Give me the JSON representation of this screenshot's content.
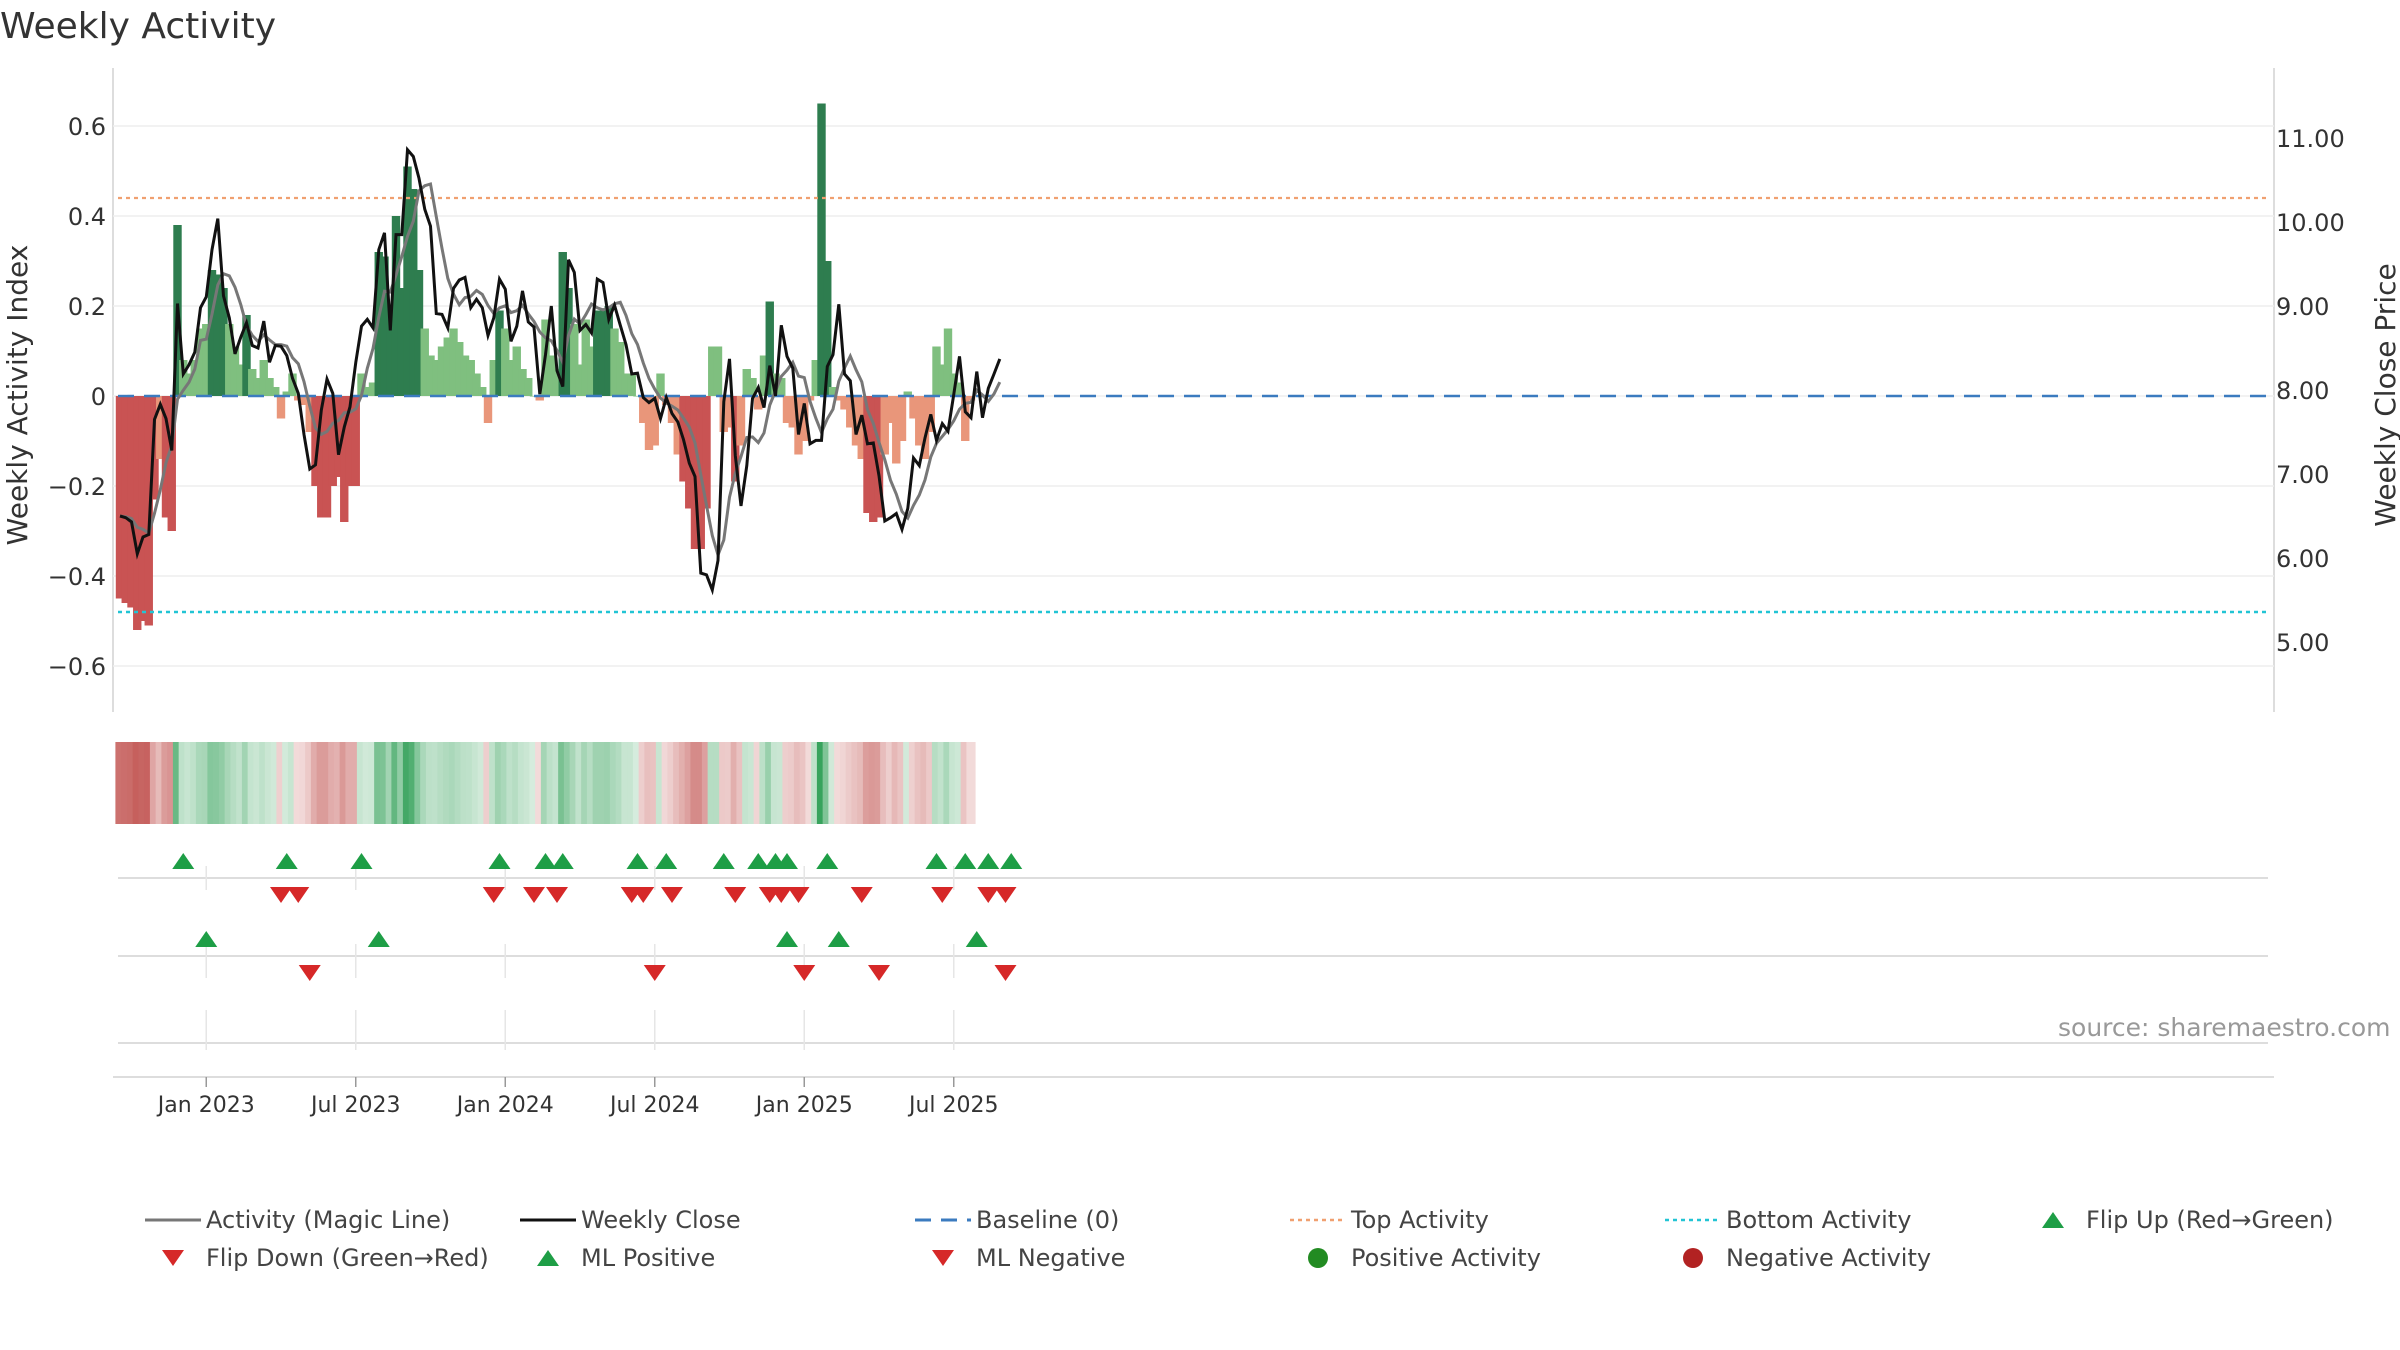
{
  "title": "Weekly Activity",
  "source": "source: sharemaestro.com",
  "colors": {
    "positive_strong": "#2e7d4f",
    "positive_light": "#7fbf7f",
    "negative_strong": "#c95353",
    "negative_light": "#e9967a",
    "magic_line": "#777777",
    "close_line": "#111111",
    "baseline": "#3b7bbf",
    "top": "#f0a070",
    "bottom": "#22c4d4",
    "up_marker": "#1e9e46",
    "down_marker": "#d62828"
  },
  "chart_data": {
    "type": "bar+line",
    "title": "Weekly Activity",
    "ylabel_left": "Weekly Activity Index",
    "ylabel_right": "Weekly Close Price",
    "ylim_left": [
      -0.7,
      0.7
    ],
    "ylim_right": [
      4.3,
      11.8
    ],
    "yticks_left": [
      "0.6",
      "0.4",
      "0.2",
      "0",
      "−0.2",
      "−0.4",
      "−0.6"
    ],
    "yticks_left_values": [
      0.6,
      0.4,
      0.2,
      0,
      -0.2,
      -0.4,
      -0.6
    ],
    "yticks_right": [
      "11.00",
      "10.00",
      "9.00",
      "8.00",
      "7.00",
      "6.00",
      "5.00"
    ],
    "yticks_right_values": [
      11,
      10,
      9,
      8,
      7,
      6,
      5
    ],
    "xtick_labels": [
      "Jan 2023",
      "Jul 2023",
      "Jan 2024",
      "Jul 2024",
      "Jan 2025",
      "Jul 2025"
    ],
    "xtick_weeks": [
      15,
      41,
      67,
      93,
      119,
      145
    ],
    "top_activity": 0.44,
    "bottom_activity": -0.48,
    "baseline": 0,
    "activity": [
      -0.45,
      -0.46,
      -0.47,
      -0.52,
      -0.5,
      -0.51,
      -0.23,
      -0.14,
      -0.27,
      -0.3,
      0.38,
      0.08,
      0.05,
      0.08,
      0.15,
      0.16,
      0.28,
      0.27,
      0.24,
      0.16,
      0.11,
      0.07,
      0.18,
      0.06,
      0.04,
      0.08,
      0.04,
      0.02,
      -0.05,
      0.01,
      0.05,
      -0.01,
      -0.02,
      -0.08,
      -0.2,
      -0.27,
      -0.27,
      -0.2,
      -0.18,
      -0.28,
      -0.2,
      -0.2,
      0.05,
      0.02,
      0.03,
      0.32,
      0.31,
      0.18,
      0.4,
      0.24,
      0.51,
      0.46,
      0.28,
      0.15,
      0.09,
      0.08,
      0.11,
      0.13,
      0.15,
      0.12,
      0.09,
      0.08,
      0.05,
      0.02,
      -0.06,
      0.08,
      0.19,
      0.15,
      0.08,
      0.11,
      0.06,
      0.04,
      0.0,
      -0.01,
      0.17,
      0.09,
      0.06,
      0.32,
      0.24,
      0.16,
      0.07,
      0.17,
      0.11,
      0.19,
      0.19,
      0.2,
      0.15,
      0.12,
      0.05,
      0.05,
      0.0,
      -0.06,
      -0.12,
      -0.11,
      0.05,
      -0.02,
      -0.06,
      -0.13,
      -0.19,
      -0.25,
      -0.34,
      -0.34,
      -0.25,
      0.11,
      0.11,
      -0.08,
      -0.07,
      -0.19,
      -0.11,
      0.06,
      0.04,
      -0.03,
      0.09,
      0.21,
      0.05,
      0.04,
      -0.06,
      -0.07,
      -0.13,
      -0.1,
      -0.01,
      0.08,
      0.65,
      0.3,
      0.02,
      -0.01,
      -0.03,
      -0.07,
      -0.11,
      -0.14,
      -0.26,
      -0.28,
      -0.27,
      -0.13,
      -0.06,
      -0.15,
      -0.1,
      0.01,
      -0.05,
      -0.11,
      -0.14,
      -0.08,
      0.11,
      0.07,
      0.15,
      0.05,
      0.03,
      -0.1,
      -0.01
    ]
  },
  "price": [
    6.5,
    6.48,
    6.43,
    6.05,
    6.25,
    6.28,
    7.65,
    7.83,
    7.66,
    7.28,
    9.03,
    8.19,
    8.3,
    8.45,
    8.98,
    9.11,
    9.67,
    10.04,
    9.12,
    8.86,
    8.43,
    8.63,
    8.8,
    8.53,
    8.5,
    8.82,
    8.33,
    8.53,
    8.52,
    8.41,
    8.14,
    7.96,
    7.47,
    7.06,
    7.11,
    7.76,
    8.13,
    7.96,
    7.23,
    7.56,
    7.8,
    8.33,
    8.76,
    8.84,
    8.74,
    9.67,
    9.87,
    8.71,
    9.85,
    9.85,
    10.86,
    10.78,
    10.52,
    10.15,
    9.95,
    8.91,
    8.9,
    8.74,
    9.21,
    9.31,
    9.34,
    8.98,
    9.08,
    8.98,
    8.65,
    8.86,
    9.32,
    9.2,
    8.58,
    8.76,
    9.18,
    8.81,
    8.75,
    7.95,
    8.42,
    9.0,
    8.23,
    8.04,
    9.55,
    9.4,
    8.71,
    8.78,
    8.68,
    9.32,
    9.28,
    8.84,
    9.01,
    8.77,
    8.54,
    8.19,
    8.2,
    7.91,
    7.85,
    7.9,
    7.66,
    7.91,
    7.72,
    7.62,
    7.41,
    7.13,
    6.97,
    5.82,
    5.8,
    5.62,
    5.97,
    7.86,
    8.37,
    7.22,
    6.62,
    7.1,
    7.9,
    8.03,
    7.79,
    8.29,
    7.93,
    8.77,
    8.4,
    8.26,
    7.47,
    7.84,
    7.36,
    7.4,
    7.4,
    8.28,
    8.42,
    9.02,
    8.19,
    8.11,
    7.47,
    7.7,
    7.36,
    7.37,
    6.98,
    6.44,
    6.48,
    6.53,
    6.34,
    6.59,
    7.19,
    7.1,
    7.43,
    7.71,
    7.4,
    7.6,
    7.51,
    7.95,
    8.4,
    7.74,
    7.67,
    8.22,
    7.67,
    8.02,
    8.19,
    8.37
  ],
  "heat_strip": [
    -0.45,
    -0.46,
    -0.47,
    -0.52,
    -0.5,
    -0.51,
    -0.23,
    -0.14,
    -0.27,
    -0.3,
    0.38,
    0.08,
    0.05,
    0.08,
    0.15,
    0.16,
    0.28,
    0.27,
    0.24,
    0.16,
    0.11,
    0.07,
    0.18,
    0.06,
    0.04,
    0.08,
    0.04,
    0.02,
    -0.05,
    0.01,
    0.05,
    -0.01,
    -0.02,
    -0.08,
    -0.2,
    -0.27,
    -0.27,
    -0.2,
    -0.18,
    -0.28,
    -0.2,
    -0.2,
    0.05,
    0.02,
    0.03,
    0.32,
    0.31,
    0.18,
    0.4,
    0.24,
    0.51,
    0.46,
    0.28,
    0.15,
    0.09,
    0.08,
    0.11,
    0.13,
    0.15,
    0.12,
    0.09,
    0.08,
    0.05,
    0.02,
    -0.06,
    0.08,
    0.19,
    0.15,
    0.08,
    0.11,
    0.06,
    0.04,
    0.0,
    -0.01,
    0.17,
    0.09,
    0.06,
    0.32,
    0.24,
    0.16,
    0.07,
    0.17,
    0.11,
    0.19,
    0.19,
    0.2,
    0.15,
    0.12,
    0.05,
    0.05,
    0.0,
    -0.06,
    -0.12,
    -0.11,
    0.05,
    -0.02,
    -0.06,
    -0.13,
    -0.19,
    -0.25,
    -0.34,
    -0.34,
    -0.25,
    0.11,
    0.11,
    -0.08,
    -0.07,
    -0.19,
    -0.11,
    0.06,
    0.04,
    -0.03,
    0.09,
    0.21,
    0.05,
    0.04,
    -0.06,
    -0.07,
    -0.13,
    -0.1,
    -0.01,
    0.08,
    0.65,
    0.3,
    0.02,
    -0.01,
    -0.03,
    -0.07,
    -0.11,
    -0.14,
    -0.26,
    -0.28,
    -0.27,
    -0.13,
    -0.06,
    -0.15,
    -0.1,
    0.01,
    -0.05,
    -0.11,
    -0.14,
    -0.08,
    0.11,
    0.07,
    0.15,
    0.05,
    0.03,
    -0.1,
    -0.01
  ],
  "flip_up_weeks": [
    11,
    29,
    42,
    66,
    74,
    77,
    90,
    95,
    105,
    111,
    114,
    116,
    123,
    142,
    147,
    151,
    155
  ],
  "flip_down_weeks": [
    28,
    31,
    65,
    72,
    76,
    89,
    91,
    96,
    107,
    113,
    115,
    118,
    129,
    143,
    151,
    154
  ],
  "ml_positive_weeks": [
    15,
    45,
    116,
    125,
    149
  ],
  "ml_negative_weeks": [
    33,
    93,
    119,
    132,
    154
  ],
  "legend": [
    {
      "label": "Activity (Magic Line)",
      "symbol": "line-solid-gray"
    },
    {
      "label": "Weekly Close",
      "symbol": "line-solid-black"
    },
    {
      "label": "Baseline (0)",
      "symbol": "line-dashed-blue"
    },
    {
      "label": "Top Activity",
      "symbol": "line-dotted-orange"
    },
    {
      "label": "Bottom Activity",
      "symbol": "line-dotted-cyan"
    },
    {
      "label": "Flip Up (Red→Green)",
      "symbol": "triangle-up-green"
    },
    {
      "label": "Flip Down (Green→Red)",
      "symbol": "triangle-down-red"
    },
    {
      "label": "ML Positive",
      "symbol": "triangle-up-green"
    },
    {
      "label": "ML Negative",
      "symbol": "triangle-down-red"
    },
    {
      "label": "Positive Activity",
      "symbol": "dot-green"
    },
    {
      "label": "Negative Activity",
      "symbol": "dot-darkred"
    }
  ]
}
